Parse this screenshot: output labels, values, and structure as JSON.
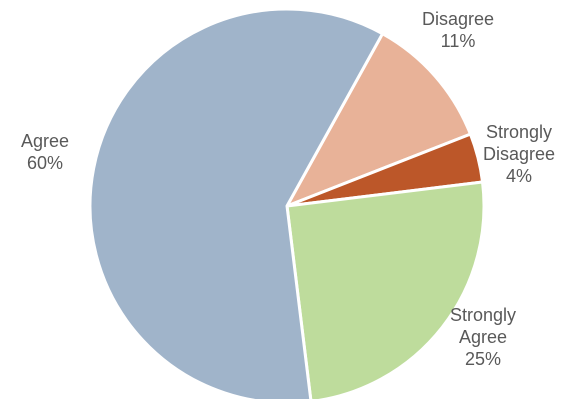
{
  "chart_data": {
    "type": "pie",
    "title": "",
    "start_angle_deg": 29,
    "direction": "clockwise",
    "slices": [
      {
        "name": "Disagree",
        "label_lines": [
          "Disagree",
          "11%"
        ],
        "value": 11,
        "color": "#E8B298"
      },
      {
        "name": "Strongly Disagree",
        "label_lines": [
          "Strongly",
          "Disagree",
          "4%"
        ],
        "value": 4,
        "color": "#BC5729"
      },
      {
        "name": "Strongly Agree",
        "label_lines": [
          "Strongly",
          "Agree",
          "25%"
        ],
        "value": 25,
        "color": "#BEDC9C"
      },
      {
        "name": "Agree",
        "label_lines": [
          "Agree",
          "60%"
        ],
        "value": 60,
        "color": "#A0B4CA"
      }
    ]
  }
}
